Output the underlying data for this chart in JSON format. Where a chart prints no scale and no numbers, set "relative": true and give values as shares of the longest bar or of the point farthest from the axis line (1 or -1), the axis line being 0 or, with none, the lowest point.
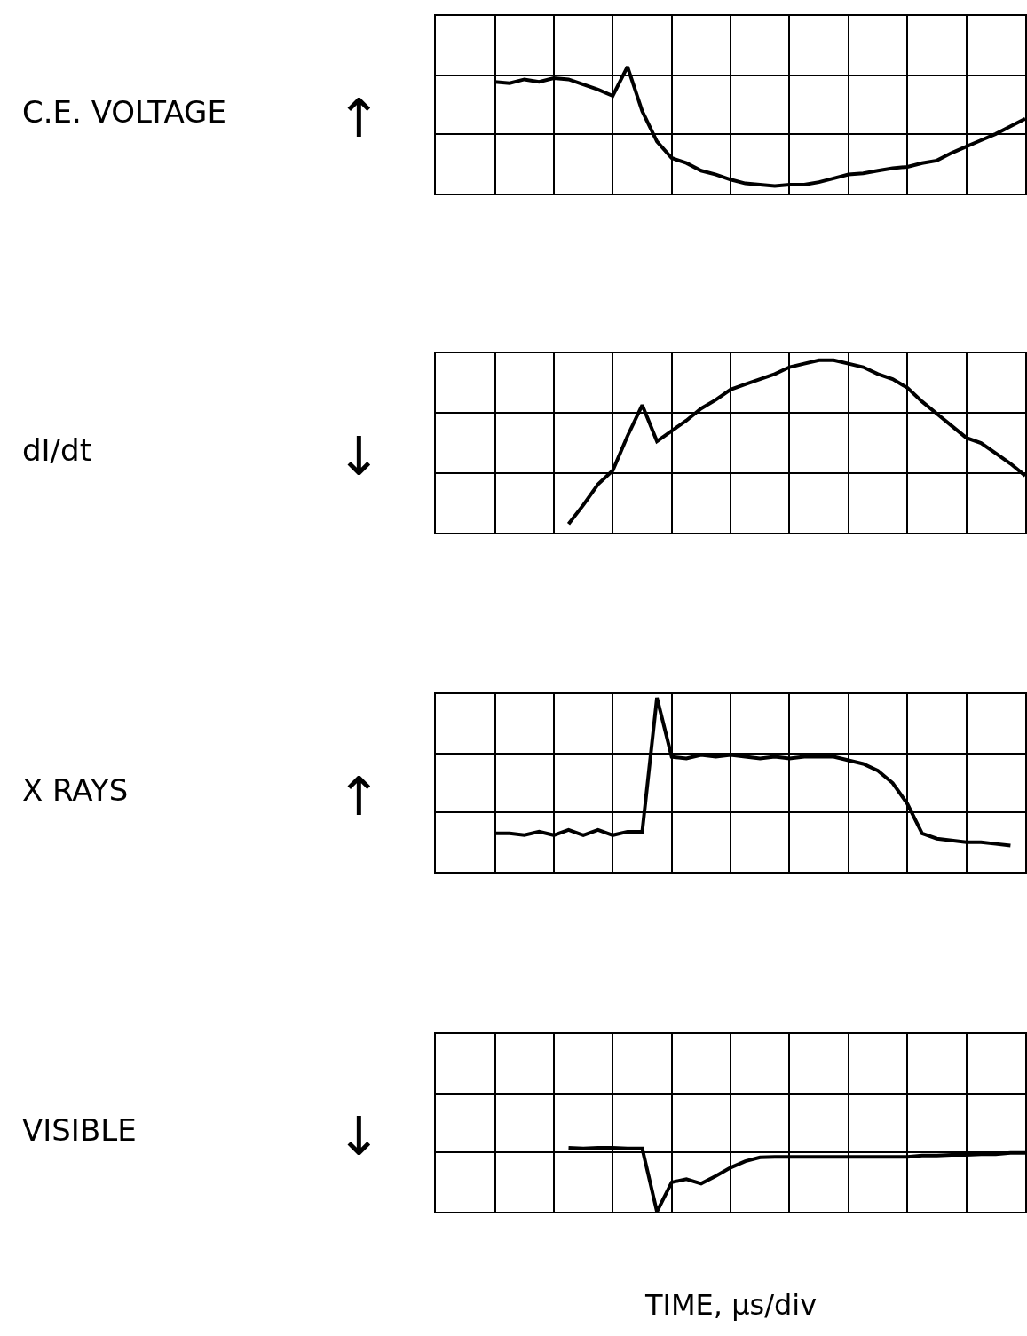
{
  "chart_data": [
    {
      "type": "line",
      "relative": true,
      "ylabel": "C.E. VOLTAGE",
      "annotations": [
        "↑"
      ],
      "grid": true,
      "categories": [
        null,
        null,
        null,
        null,
        null,
        null,
        null,
        null,
        null,
        null,
        null,
        null,
        null,
        null,
        null,
        null,
        null,
        null,
        null,
        null,
        null,
        null,
        null,
        null,
        null,
        null,
        null,
        null,
        null,
        null,
        null,
        null,
        null,
        null,
        null,
        null,
        null
      ],
      "series": [
        {
          "color": "#000000",
          "values": [
            0.88,
            0.87,
            0.9,
            0.88,
            0.91,
            0.9,
            0.86,
            0.82,
            0.77,
            1,
            0.65,
            0.41,
            0.28,
            0.24,
            0.18,
            0.15,
            0.11,
            0.08,
            0.07,
            0.06,
            0.07,
            0.07,
            0.09,
            0.12,
            0.15,
            0.16,
            0.18,
            0.2,
            0.21,
            0.24,
            0.26,
            0.32,
            0.37,
            0.42,
            0.47,
            0.53,
            0.59
          ]
        }
      ]
    },
    {
      "type": "line",
      "relative": true,
      "ylabel": "dI/dt",
      "annotations": [
        "↓"
      ],
      "grid": true,
      "categories": [
        null,
        null,
        null,
        null,
        null,
        null,
        null,
        null,
        null,
        null,
        null,
        null,
        null,
        null,
        null,
        null,
        null,
        null,
        null,
        null,
        null,
        null,
        null,
        null,
        null,
        null,
        null,
        null,
        null,
        null,
        null,
        null
      ],
      "series": [
        {
          "color": "#000000",
          "values": [
            0.05,
            0.16,
            0.28,
            0.36,
            0.56,
            0.74,
            0.53,
            0.59,
            0.65,
            0.72,
            0.77,
            0.83,
            0.86,
            0.89,
            0.92,
            0.96,
            0.98,
            1,
            1,
            0.98,
            0.96,
            0.92,
            0.89,
            0.84,
            0.76,
            0.69,
            0.62,
            0.55,
            0.52,
            0.46,
            0.4,
            0.33
          ]
        }
      ]
    },
    {
      "type": "line",
      "relative": true,
      "ylabel": "X RAYS",
      "annotations": [
        "↑"
      ],
      "grid": true,
      "categories": [
        null,
        null,
        null,
        null,
        null,
        null,
        null,
        null,
        null,
        null,
        null,
        null,
        null,
        null,
        null,
        null,
        null,
        null,
        null,
        null,
        null,
        null,
        null,
        null,
        null,
        null,
        null,
        null,
        null,
        null,
        null,
        null,
        null,
        null,
        null,
        null
      ],
      "series": [
        {
          "color": "#000000",
          "values": [
            0.22,
            0.22,
            0.21,
            0.23,
            0.21,
            0.24,
            0.21,
            0.24,
            0.21,
            0.23,
            0.23,
            1,
            0.66,
            0.65,
            0.67,
            0.66,
            0.67,
            0.66,
            0.65,
            0.66,
            0.65,
            0.66,
            0.66,
            0.66,
            0.64,
            0.62,
            0.58,
            0.51,
            0.39,
            0.22,
            0.19,
            0.18,
            0.17,
            0.17,
            0.16,
            0.15
          ]
        }
      ]
    },
    {
      "type": "line",
      "relative": true,
      "ylabel": "VISIBLE",
      "annotations": [
        "↓"
      ],
      "grid": true,
      "xlabel": "TIME, μs/div",
      "categories": [
        null,
        null,
        null,
        null,
        null,
        null,
        null,
        null,
        null,
        null,
        null,
        null,
        null,
        null,
        null,
        null,
        null,
        null,
        null,
        null,
        null,
        null,
        null,
        null,
        null,
        null,
        null,
        null,
        null,
        null,
        null,
        null
      ],
      "series": [
        {
          "color": "#000000",
          "values": [
            1,
            0.99,
            1,
            1,
            0.99,
            0.99,
            0,
            0.46,
            0.51,
            0.44,
            0.56,
            0.69,
            0.79,
            0.85,
            0.86,
            0.86,
            0.86,
            0.86,
            0.86,
            0.86,
            0.86,
            0.86,
            0.86,
            0.86,
            0.88,
            0.88,
            0.89,
            0.89,
            0.9,
            0.9,
            0.92,
            0.92
          ]
        }
      ]
    }
  ]
}
